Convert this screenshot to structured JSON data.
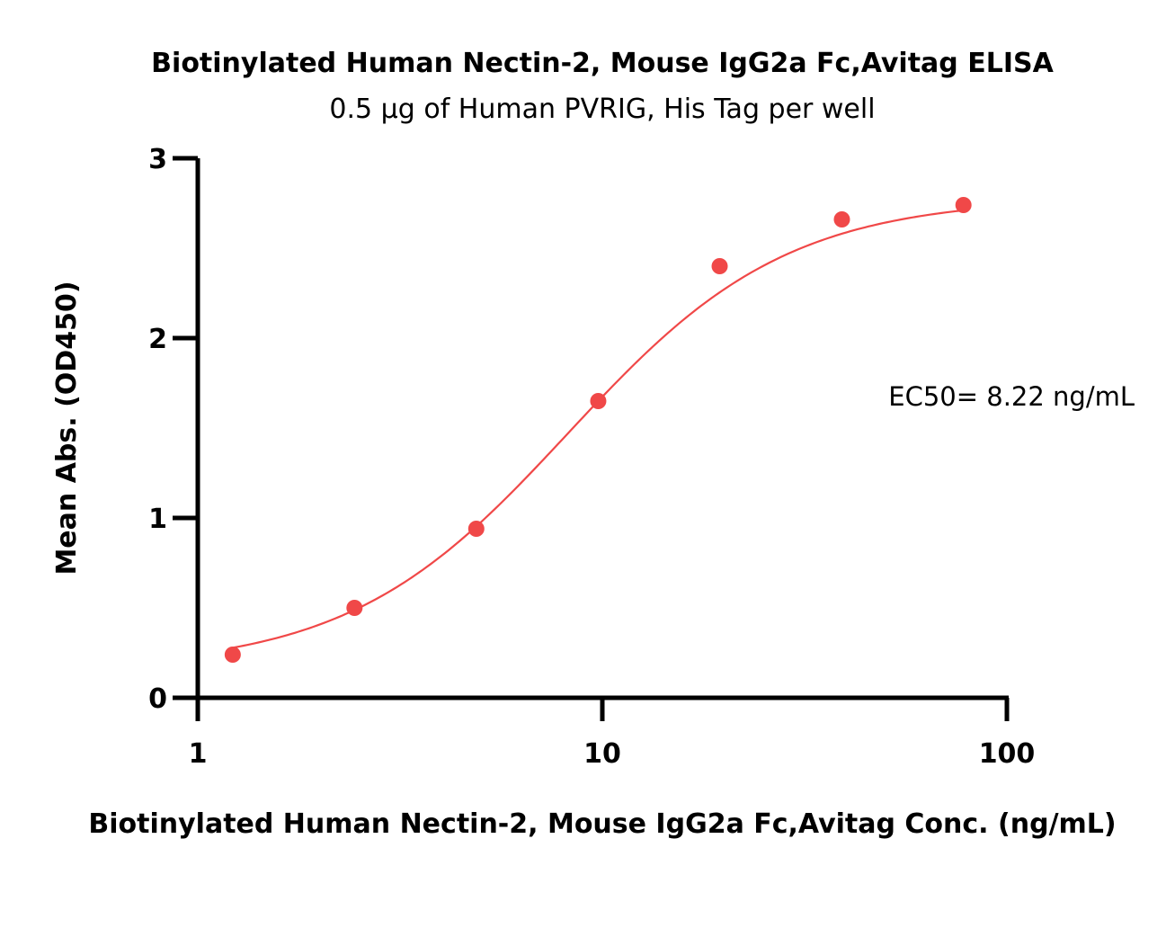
{
  "chart_data": {
    "type": "scatter",
    "title": "Biotinylated Human Nectin-2, Mouse IgG2a Fc,Avitag ELISA",
    "subtitle": "0.5 µg of Human PVRIG, His Tag per well",
    "xlabel": "Biotinylated Human Nectin-2, Mouse IgG2a Fc,Avitag Conc. (ng/mL)",
    "ylabel": "Mean Abs. (OD450)",
    "xscale": "log",
    "xlim": [
      1,
      100
    ],
    "ylim": [
      0,
      3
    ],
    "xticks": [
      1,
      10,
      100
    ],
    "xtick_labels": [
      "1",
      "10",
      "100"
    ],
    "yticks": [
      0,
      1,
      2,
      3
    ],
    "ytick_labels": [
      "0",
      "1",
      "2",
      "3"
    ],
    "grid": false,
    "annotation": "EC50= 8.22 ng/mL",
    "series": [
      {
        "color": "#f04848",
        "points": [
          {
            "x": 1.22,
            "y": 0.24
          },
          {
            "x": 2.44,
            "y": 0.5
          },
          {
            "x": 4.88,
            "y": 0.94
          },
          {
            "x": 9.77,
            "y": 1.65
          },
          {
            "x": 19.5,
            "y": 2.4
          },
          {
            "x": 39.1,
            "y": 2.66
          },
          {
            "x": 78.1,
            "y": 2.74
          }
        ],
        "fit": {
          "model": "4PL",
          "bottom": 0.16,
          "top": 2.78,
          "ec50": 8.22,
          "hill": 1.6
        }
      }
    ]
  }
}
